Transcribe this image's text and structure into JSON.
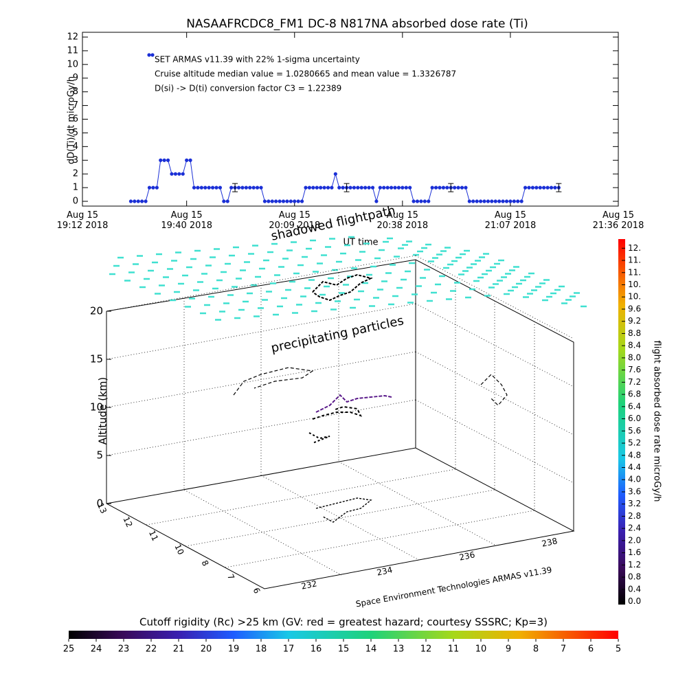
{
  "chart_data": [
    {
      "type": "line",
      "title": "NASAAFRCDC8_FM1 DC-8    N817NA absorbed dose rate (Ti)",
      "y_label": "dD(Ti)/dt microGy/h",
      "x_label": "UT time",
      "x": [
        "19:25",
        "19:26",
        "19:27",
        "19:28",
        "19:29",
        "19:30",
        "19:31",
        "19:32",
        "19:33",
        "19:34",
        "19:35",
        "19:36",
        "19:37",
        "19:38",
        "19:39",
        "19:40",
        "19:41",
        "19:42",
        "19:43",
        "19:44",
        "19:45",
        "19:46",
        "19:47",
        "19:48",
        "19:49",
        "19:50",
        "19:51",
        "19:52",
        "19:53",
        "19:54",
        "19:55",
        "19:56",
        "19:57",
        "19:58",
        "19:59",
        "20:00",
        "20:01",
        "20:02",
        "20:03",
        "20:04",
        "20:05",
        "20:06",
        "20:07",
        "20:08",
        "20:09",
        "20:10",
        "20:11",
        "20:12",
        "20:13",
        "20:14",
        "20:15",
        "20:16",
        "20:17",
        "20:18",
        "20:19",
        "20:20",
        "20:21",
        "20:22",
        "20:23",
        "20:24",
        "20:25",
        "20:26",
        "20:27",
        "20:28",
        "20:29",
        "20:30",
        "20:31",
        "20:32",
        "20:33",
        "20:34",
        "20:35",
        "20:36",
        "20:37",
        "20:38",
        "20:39",
        "20:40",
        "20:41",
        "20:42",
        "20:43",
        "20:44",
        "20:45",
        "20:46",
        "20:47",
        "20:48",
        "20:49",
        "20:50",
        "20:51",
        "20:52",
        "20:53",
        "20:54",
        "20:55",
        "20:56",
        "20:57",
        "20:58",
        "20:59",
        "21:00",
        "21:01",
        "21:02",
        "21:03",
        "21:04",
        "21:05",
        "21:06",
        "21:07",
        "21:08",
        "21:09",
        "21:10",
        "21:11",
        "21:12",
        "21:13",
        "21:14",
        "21:15",
        "21:16",
        "21:17",
        "21:18",
        "21:19",
        "21:20"
      ],
      "series": [
        {
          "name": "SET ARMAS v11.39 with 22% 1-sigma uncertainty",
          "color": "#1a2fd6",
          "values": [
            0,
            0,
            0,
            0,
            0,
            1,
            1,
            1,
            3,
            3,
            3,
            2,
            2,
            2,
            2,
            3,
            3,
            1,
            1,
            1,
            1,
            1,
            1,
            1,
            1,
            0,
            0,
            1,
            1,
            1,
            1,
            1,
            1,
            1,
            1,
            1,
            0,
            0,
            0,
            0,
            0,
            0,
            0,
            0,
            0,
            0,
            0,
            1,
            1,
            1,
            1,
            1,
            1,
            1,
            1,
            2,
            1,
            1,
            1,
            1,
            1,
            1,
            1,
            1,
            1,
            1,
            0,
            1,
            1,
            1,
            1,
            1,
            1,
            1,
            1,
            1,
            0,
            0,
            0,
            0,
            0,
            1,
            1,
            1,
            1,
            1,
            1,
            1,
            1,
            1,
            1,
            0,
            0,
            0,
            0,
            0,
            0,
            0,
            0,
            0,
            0,
            0,
            0,
            0,
            0,
            0,
            1,
            1,
            1,
            1,
            1,
            1,
            1,
            1,
            1,
            1
          ]
        }
      ],
      "error_bars": {
        "x": [
          "19:53",
          "20:23",
          "20:51",
          "21:20"
        ],
        "values": [
          1,
          1,
          1,
          1
        ],
        "errors": [
          0.3,
          0.3,
          0.3,
          0.3
        ]
      },
      "annotations": [
        "Cruise altitude median value = 1.0280665 and mean value = 1.3326787",
        "D(si) -> D(ti) conversion factor C3 = 1.22389"
      ],
      "legend": "top-left",
      "xlim": [
        "19:12",
        "21:36"
      ],
      "xticks": [
        {
          "value": "19:12",
          "label": "Aug 15\n19:12 2018"
        },
        {
          "value": "19:40",
          "label": "Aug 15\n19:40 2018"
        },
        {
          "value": "20:09",
          "label": "Aug 15\n20:09 2018"
        },
        {
          "value": "20:38",
          "label": "Aug 15\n20:38 2018"
        },
        {
          "value": "21:07",
          "label": "Aug 15\n21:07 2018"
        },
        {
          "value": "21:36",
          "label": "Aug 15\n21:36 2018"
        }
      ],
      "ylim": [
        -0.35,
        12.35
      ],
      "yticks": [
        0,
        1,
        2,
        3,
        4,
        5,
        6,
        7,
        8,
        9,
        10,
        11,
        12
      ]
    },
    {
      "type": "3d-trajectory",
      "z_label": "Altitude (km)",
      "zlim": [
        0,
        20
      ],
      "zticks": [
        0,
        5,
        10,
        15,
        20
      ],
      "lat_ticks": [
        "13",
        "12",
        "11",
        "10",
        "8",
        "7",
        "6"
      ],
      "lon_ticks": [
        "232",
        "234",
        "236",
        "238"
      ],
      "annotations": [
        "shadowed flightpath",
        "precipitating particles"
      ],
      "credit": "Space Environment Technologies ARMAS v11.39",
      "colorbar": {
        "title": "flight absorbed dose rate microGy/h",
        "lim": [
          -0.1,
          11.9
        ],
        "ticks": [
          {
            "value": 0.0,
            "label": "0.0"
          },
          0.4,
          0.8,
          1.2,
          1.6,
          {
            "value": 2.0,
            "label": "2.0"
          },
          2.4,
          2.8,
          3.2,
          3.6,
          {
            "value": 4.0,
            "label": "4.0"
          },
          4.4,
          4.8,
          5.2,
          5.6,
          {
            "value": 6.0,
            "label": "6.0"
          },
          6.4,
          6.8,
          7.2,
          7.6,
          {
            "value": 8.0,
            "label": "8.0"
          },
          8.4,
          8.8,
          9.2,
          9.6,
          {
            "value": 10.0,
            "label": "10."
          },
          {
            "value": 10.4,
            "label": "10."
          },
          {
            "value": 10.8,
            "label": "11."
          },
          {
            "value": 11.2,
            "label": "11."
          },
          {
            "value": 11.6,
            "label": "12."
          }
        ]
      }
    },
    {
      "type": "colorbar",
      "title": "Cutoff rigidity (Rc) >25 km (GV: red = greatest hazard; courtesy SSSRC; Kp=3)",
      "xlim": [
        25,
        5
      ],
      "xticks": [
        25,
        24,
        23,
        22,
        21,
        20,
        19,
        18,
        17,
        16,
        15,
        14,
        13,
        12,
        11,
        10,
        9,
        8,
        7,
        6,
        5
      ]
    }
  ]
}
